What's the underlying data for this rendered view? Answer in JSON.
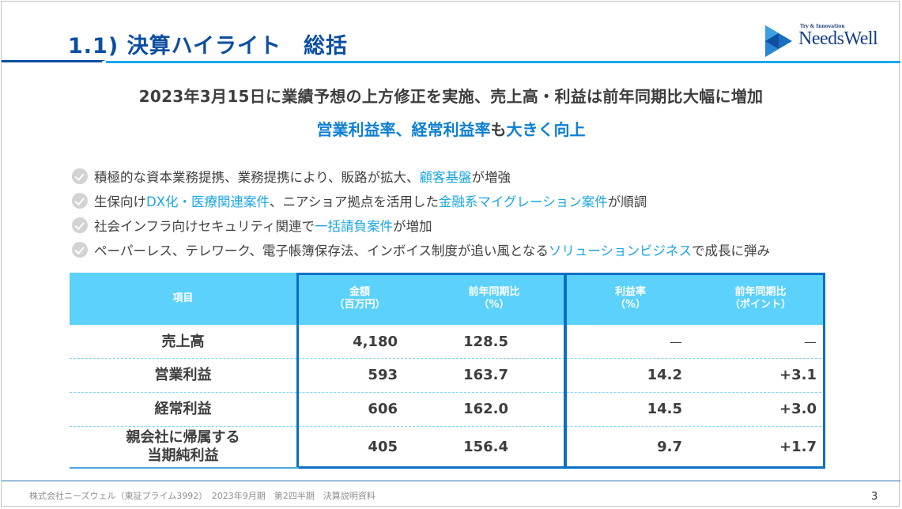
{
  "header": {
    "title": "1.1) 決算ハイライト　総括",
    "logo": {
      "tagline": "Try & Innovation",
      "name": "NeedsWell",
      "icon": "play-triangle-logo-icon"
    }
  },
  "headline": "2023年3月15日に業績予想の上方修正を実施、売上高・利益は前年同期比大幅に増加",
  "subheadline": {
    "part1": "営業利益率、経常利益率",
    "part2": "も",
    "part3": "大きく向上"
  },
  "bullets": [
    {
      "icon": "check-circle-icon",
      "segments": [
        {
          "text": "積極的な資本業務提携、業務提携により、販路が拡大、",
          "hl": false
        },
        {
          "text": "顧客基盤",
          "hl": true
        },
        {
          "text": "が増強",
          "hl": false
        }
      ]
    },
    {
      "icon": "check-circle-icon",
      "segments": [
        {
          "text": "生保向け",
          "hl": false
        },
        {
          "text": "DX化・医療関連案件",
          "hl": true
        },
        {
          "text": "、ニアショア拠点を活用した",
          "hl": false
        },
        {
          "text": "金融系マイグレーション案件",
          "hl": true
        },
        {
          "text": "が順調",
          "hl": false
        }
      ]
    },
    {
      "icon": "check-circle-icon",
      "segments": [
        {
          "text": "社会インフラ向けセキュリティ関連で",
          "hl": false
        },
        {
          "text": "一括請負案件",
          "hl": true
        },
        {
          "text": "が増加",
          "hl": false
        }
      ]
    },
    {
      "icon": "check-circle-icon",
      "segments": [
        {
          "text": "ペーパーレス、テレワーク、電子帳簿保存法、インボイス制度が追い風となる",
          "hl": false
        },
        {
          "text": "ソリューションビジネス",
          "hl": true
        },
        {
          "text": "で成長に弾み",
          "hl": false
        }
      ]
    }
  ],
  "table": {
    "headers": {
      "item": "項目",
      "amount_l1": "金額",
      "amount_l2": "（百万円）",
      "yoy_l1": "前年同期比",
      "yoy_l2": "（%）",
      "margin_l1": "利益率",
      "margin_l2": "（%）",
      "margin_yoy_l1": "前年同期比",
      "margin_yoy_l2": "（ポイント）"
    },
    "rows": [
      {
        "label": "売上高",
        "label2": "",
        "amount": "4,180",
        "yoy": "128.5",
        "margin": "—",
        "margin_yoy": "—"
      },
      {
        "label": "営業利益",
        "label2": "",
        "amount": "593",
        "yoy": "163.7",
        "margin": "14.2",
        "margin_yoy": "+3.1"
      },
      {
        "label": "経常利益",
        "label2": "",
        "amount": "606",
        "yoy": "162.0",
        "margin": "14.5",
        "margin_yoy": "+3.0"
      },
      {
        "label": "親会社に帰属する",
        "label2": "当期純利益",
        "amount": "405",
        "yoy": "156.4",
        "margin": "9.7",
        "margin_yoy": "+1.7"
      }
    ]
  },
  "footer": {
    "text": "株式会社ニーズウェル（東証プライム3992）　2023年9月期　第2四半期　決算説明資料",
    "page": "3"
  },
  "colors": {
    "title_blue": "#0b4ea2",
    "accent_light_blue": "#1aa7ec",
    "highlight_blue": "#1ba6e0",
    "table_header": "#5bd1fb",
    "table_frame": "#0b6fc4"
  }
}
